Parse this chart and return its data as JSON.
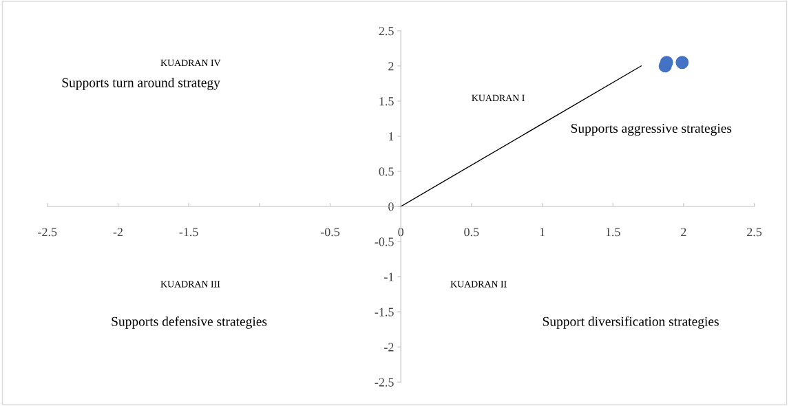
{
  "chart_data": {
    "type": "scatter",
    "series": [
      {
        "color": "#4472c4",
        "x": [
          1.87,
          1.88,
          1.99
        ],
        "values": [
          2.0,
          2.05,
          2.05
        ],
        "marker": "circle"
      },
      {
        "type": "line",
        "color": "#000000",
        "x": [
          0,
          1.7
        ],
        "values": [
          0,
          2.0
        ],
        "marker": "none"
      }
    ],
    "xlim": [
      -2.5,
      2.5
    ],
    "ylim": [
      -2.5,
      2.5
    ],
    "xticks": [
      -2.5,
      -2,
      -1.5,
      {
        "value": -1,
        "label": null
      },
      {
        "value": -0.5,
        "label": "-0.5"
      },
      {
        "value": 0,
        "label": "0"
      },
      0.5,
      1,
      1.5,
      2,
      2.5
    ],
    "yticks": [
      -2.5,
      -2,
      -1.5,
      -1,
      {
        "value": -0.5,
        "label": "-0.5"
      },
      {
        "value": 0,
        "label": "0"
      },
      0.5,
      1,
      1.5,
      2,
      2.5
    ],
    "annotations": [
      "KUADRAN I",
      "Supports aggressive strategies",
      "KUADRAN II",
      "Support diversification strategies",
      "KUADRAN III",
      "Supports defensive strategies",
      "KUADRAN IV",
      "Supports turn around strategy"
    ],
    "grid": false,
    "legend": false
  }
}
